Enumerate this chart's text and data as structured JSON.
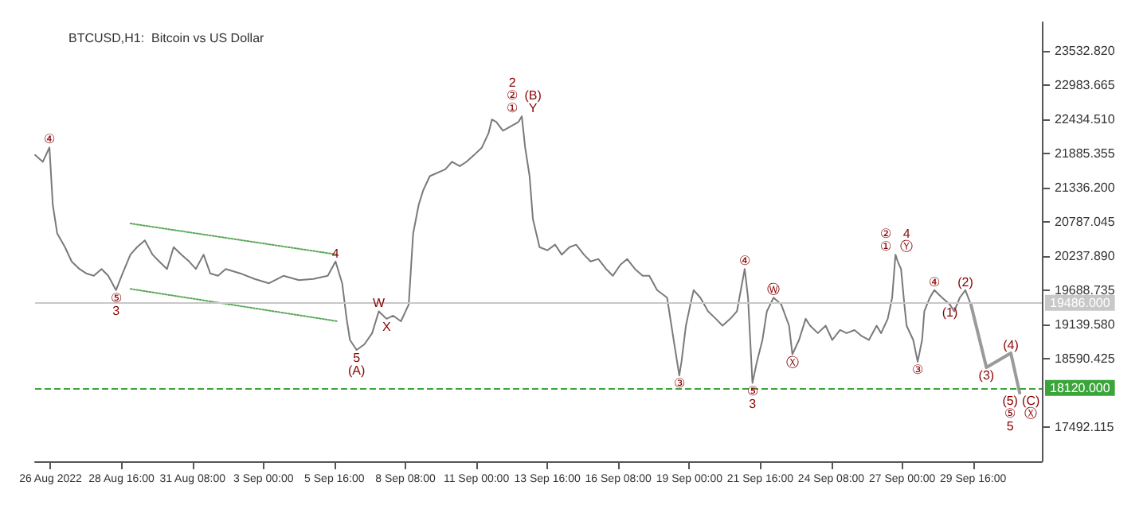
{
  "chart_data": {
    "type": "line",
    "title": "BTCUSD,H1:  Bitcoin vs US Dollar",
    "marker": "none",
    "grid": false,
    "xlim": [
      "2022-08-25T10:00",
      "2022-10-02T06:00"
    ],
    "xticks": [
      {
        "value": "2022-08-26T00:00",
        "label": "26 Aug 2022"
      },
      {
        "value": "2022-08-28T16:00",
        "label": "28 Aug 16:00"
      },
      {
        "value": "2022-08-31T08:00",
        "label": "31 Aug 08:00"
      },
      {
        "value": "2022-09-03T00:00",
        "label": "3 Sep 00:00"
      },
      {
        "value": "2022-09-05T16:00",
        "label": "5 Sep 16:00"
      },
      {
        "value": "2022-09-08T08:00",
        "label": "8 Sep 08:00"
      },
      {
        "value": "2022-09-11T00:00",
        "label": "11 Sep 00:00"
      },
      {
        "value": "2022-09-13T16:00",
        "label": "13 Sep 16:00"
      },
      {
        "value": "2022-09-16T08:00",
        "label": "16 Sep 08:00"
      },
      {
        "value": "2022-09-19T00:00",
        "label": "19 Sep 00:00"
      },
      {
        "value": "2022-09-21T16:00",
        "label": "21 Sep 16:00"
      },
      {
        "value": "2022-09-24T08:00",
        "label": "24 Sep 08:00"
      },
      {
        "value": "2022-09-27T00:00",
        "label": "27 Sep 00:00"
      },
      {
        "value": "2022-09-29T16:00",
        "label": "29 Sep 16:00"
      }
    ],
    "ylim": [
      16943,
      23990
    ],
    "yticks": [
      {
        "value": 17492.115,
        "label": "17492.115"
      },
      {
        "value": 18590.425,
        "label": "18590.425"
      },
      {
        "value": 19139.58,
        "label": "19139.580"
      },
      {
        "value": 19688.735,
        "label": "19688.735"
      },
      {
        "value": 20237.89,
        "label": "20237.890"
      },
      {
        "value": 20787.045,
        "label": "20787.045"
      },
      {
        "value": 21336.2,
        "label": "21336.200"
      },
      {
        "value": 21885.355,
        "label": "21885.355"
      },
      {
        "value": 22434.51,
        "label": "22434.510"
      },
      {
        "value": 22983.665,
        "label": "22983.665"
      },
      {
        "value": 23532.82,
        "label": "23532.820"
      }
    ],
    "ref_lines": [
      {
        "axis": "y",
        "value": 19486,
        "label": "19486.000",
        "color": "#c8c8c8",
        "line_style": "solid"
      },
      {
        "axis": "y",
        "value": 18120,
        "label": "18120.000",
        "color": "#3aa63a",
        "line_style": "dashed"
      }
    ],
    "series": [
      {
        "color": "#7a7a7a",
        "line_style": "solid",
        "x": [
          "2022-08-25T10:00",
          "2022-08-25T17:00",
          "2022-08-25T23:00",
          "2022-08-26T02:00",
          "2022-08-26T06:00",
          "2022-08-26T13:00",
          "2022-08-26T19:00",
          "2022-08-27T02:00",
          "2022-08-27T08:00",
          "2022-08-27T15:00",
          "2022-08-27T22:00",
          "2022-08-28T04:00",
          "2022-08-28T11:00",
          "2022-08-28T17:00",
          "2022-08-29T00:00",
          "2022-08-29T06:00",
          "2022-08-29T13:00",
          "2022-08-29T20:00",
          "2022-08-30T02:00",
          "2022-08-30T09:00",
          "2022-08-30T15:00",
          "2022-08-30T22:00",
          "2022-08-31T05:00",
          "2022-08-31T11:00",
          "2022-08-31T18:00",
          "2022-09-01T00:00",
          "2022-09-01T07:00",
          "2022-09-01T14:00",
          "2022-09-02T03:00",
          "2022-09-02T16:00",
          "2022-09-03T05:00",
          "2022-09-03T18:00",
          "2022-09-04T08:00",
          "2022-09-04T21:00",
          "2022-09-05T10:00",
          "2022-09-05T17:00",
          "2022-09-05T23:00",
          "2022-09-06T03:00",
          "2022-09-06T06:00",
          "2022-09-06T12:00",
          "2022-09-06T19:00",
          "2022-09-07T02:00",
          "2022-09-07T08:00",
          "2022-09-07T15:00",
          "2022-09-07T21:00",
          "2022-09-08T04:00",
          "2022-09-08T11:00",
          "2022-09-08T15:00",
          "2022-09-08T20:00",
          "2022-09-09T00:00",
          "2022-09-09T06:00",
          "2022-09-09T20:00",
          "2022-09-10T02:00",
          "2022-09-10T09:00",
          "2022-09-10T15:00",
          "2022-09-10T22:00",
          "2022-09-11T05:00",
          "2022-09-11T11:00",
          "2022-09-11T14:00",
          "2022-09-11T18:00",
          "2022-09-12T00:00",
          "2022-09-12T07:00",
          "2022-09-12T14:00",
          "2022-09-12T17:00",
          "2022-09-12T20:00",
          "2022-09-13T00:00",
          "2022-09-13T03:00",
          "2022-09-13T09:00",
          "2022-09-13T16:00",
          "2022-09-13T23:00",
          "2022-09-14T05:00",
          "2022-09-14T12:00",
          "2022-09-14T18:00",
          "2022-09-15T01:00",
          "2022-09-15T07:00",
          "2022-09-15T14:00",
          "2022-09-15T21:00",
          "2022-09-16T03:00",
          "2022-09-16T10:00",
          "2022-09-16T16:00",
          "2022-09-16T23:00",
          "2022-09-17T06:00",
          "2022-09-17T12:00",
          "2022-09-17T19:00",
          "2022-09-18T04:00",
          "2022-09-18T11:00",
          "2022-09-18T15:00",
          "2022-09-18T17:00",
          "2022-09-18T21:00",
          "2022-09-19T01:00",
          "2022-09-19T04:00",
          "2022-09-19T10:00",
          "2022-09-19T17:00",
          "2022-09-20T00:00",
          "2022-09-20T06:00",
          "2022-09-20T13:00",
          "2022-09-20T19:00",
          "2022-09-21T02:00",
          "2022-09-21T05:00",
          "2022-09-21T09:00",
          "2022-09-21T13:00",
          "2022-09-21T18:00",
          "2022-09-21T22:00",
          "2022-09-22T04:00",
          "2022-09-22T11:00",
          "2022-09-22T18:00",
          "2022-09-22T21:00",
          "2022-09-23T03:00",
          "2022-09-23T09:00",
          "2022-09-23T13:00",
          "2022-09-23T20:00",
          "2022-09-24T03:00",
          "2022-09-24T09:00",
          "2022-09-24T16:00",
          "2022-09-24T22:00",
          "2022-09-25T05:00",
          "2022-09-25T11:00",
          "2022-09-25T18:00",
          "2022-09-26T01:00",
          "2022-09-26T05:00",
          "2022-09-26T11:00",
          "2022-09-26T15:00",
          "2022-09-26T18:00",
          "2022-09-26T20:00",
          "2022-09-26T23:00",
          "2022-09-27T02:00",
          "2022-09-27T04:00",
          "2022-09-27T10:00",
          "2022-09-27T14:00",
          "2022-09-27T18:00",
          "2022-09-27T20:00",
          "2022-09-28T01:00",
          "2022-09-28T05:00",
          "2022-09-28T12:00",
          "2022-09-28T19:00",
          "2022-09-28T23:00",
          "2022-09-29T04:00",
          "2022-09-29T09:00",
          "2022-09-29T14:00"
        ],
        "values": [
          21860,
          21750,
          21980,
          21060,
          20600,
          20380,
          20150,
          20030,
          19960,
          19920,
          20030,
          19920,
          19690,
          19960,
          20260,
          20380,
          20490,
          20260,
          20150,
          20030,
          20380,
          20260,
          20150,
          20030,
          20260,
          19960,
          19920,
          20030,
          19960,
          19870,
          19800,
          19920,
          19850,
          19870,
          19920,
          20150,
          19800,
          19230,
          18890,
          18730,
          18820,
          19000,
          19350,
          19230,
          19280,
          19190,
          19460,
          20600,
          21060,
          21290,
          21520,
          21630,
          21750,
          21680,
          21750,
          21860,
          21980,
          22210,
          22430,
          22390,
          22250,
          22320,
          22390,
          22480,
          21980,
          21520,
          20830,
          20380,
          20330,
          20420,
          20260,
          20380,
          20420,
          20260,
          20150,
          20190,
          20030,
          19920,
          20100,
          20190,
          20030,
          19920,
          19920,
          19690,
          19570,
          18770,
          18320,
          18540,
          19120,
          19460,
          19690,
          19570,
          19350,
          19230,
          19120,
          19230,
          19350,
          20030,
          19570,
          18200,
          18540,
          18890,
          19350,
          19570,
          19460,
          19120,
          18660,
          18890,
          19230,
          19120,
          19000,
          19120,
          18890,
          19050,
          19000,
          19050,
          18960,
          18890,
          19120,
          19000,
          19230,
          19570,
          20260,
          20150,
          20030,
          19460,
          19120,
          18890,
          18540,
          18890,
          19350,
          19570,
          19690,
          19570,
          19460,
          19350,
          19570,
          19690,
          19460
        ]
      },
      {
        "color": "#9a9a9a",
        "line_style": "solid",
        "x": [
          "2022-09-29T14:00",
          "2022-09-30T04:00",
          "2022-10-01T02:00",
          "2022-10-01T10:00"
        ],
        "values": [
          19460,
          18450,
          18680,
          18040
        ]
      },
      {
        "color": "#5aa85a",
        "line_style": "dotted",
        "x": [
          "2022-08-29T00:00",
          "2022-09-05T19:00"
        ],
        "values": [
          20760,
          20260
        ]
      },
      {
        "color": "#5aa85a",
        "line_style": "dotted",
        "x": [
          "2022-08-29T00:00",
          "2022-09-05T19:00"
        ],
        "values": [
          19710,
          19190
        ]
      }
    ],
    "annotations": [
      {
        "text": "④",
        "x": "2022-08-25T23:00",
        "y": 21980
      },
      {
        "text": "⑤",
        "x": "2022-08-28T11:00",
        "y": 19690
      },
      {
        "text": "3",
        "x": "2022-08-28T11:00",
        "y": 19690
      },
      {
        "text": "4",
        "x": "2022-09-05T17:00",
        "y": 20150
      },
      {
        "text": "5",
        "x": "2022-09-06T12:00",
        "y": 18730
      },
      {
        "text": "(A)",
        "x": "2022-09-06T12:00",
        "y": 18730
      },
      {
        "text": "W",
        "x": "2022-09-07T08:00",
        "y": 19350
      },
      {
        "text": "X",
        "x": "2022-09-07T15:00",
        "y": 19230
      },
      {
        "text": "①",
        "x": "2022-09-12T17:00",
        "y": 22480
      },
      {
        "text": "②",
        "x": "2022-09-12T17:00",
        "y": 22480
      },
      {
        "text": "2",
        "x": "2022-09-12T17:00",
        "y": 22480
      },
      {
        "text": "Y",
        "x": "2022-09-12T17:00",
        "y": 22480
      },
      {
        "text": "(B)",
        "x": "2022-09-12T17:00",
        "y": 22480
      },
      {
        "text": "③",
        "x": "2022-09-18T15:00",
        "y": 18320
      },
      {
        "text": "④",
        "x": "2022-09-21T02:00",
        "y": 20030
      },
      {
        "text": "⑤",
        "x": "2022-09-21T09:00",
        "y": 18200
      },
      {
        "text": "3",
        "x": "2022-09-21T09:00",
        "y": 18200
      },
      {
        "text": "Ⓦ",
        "x": "2022-09-22T04:00",
        "y": 19570
      },
      {
        "text": "Ⓧ",
        "x": "2022-09-22T21:00",
        "y": 18660
      },
      {
        "text": "①",
        "x": "2022-09-26T18:00",
        "y": 20260
      },
      {
        "text": "②",
        "x": "2022-09-26T18:00",
        "y": 20260
      },
      {
        "text": "Ⓨ",
        "x": "2022-09-26T18:00",
        "y": 20260
      },
      {
        "text": "4",
        "x": "2022-09-26T18:00",
        "y": 20260
      },
      {
        "text": "③",
        "x": "2022-09-27T14:00",
        "y": 18540
      },
      {
        "text": "④",
        "x": "2022-09-28T05:00",
        "y": 19690
      },
      {
        "text": "(1)",
        "x": "2022-09-28T19:00",
        "y": 19460
      },
      {
        "text": "(2)",
        "x": "2022-09-29T09:00",
        "y": 19690
      },
      {
        "text": "(3)",
        "x": "2022-09-30T04:00",
        "y": 18450
      },
      {
        "text": "(4)",
        "x": "2022-10-01T02:00",
        "y": 18680
      },
      {
        "text": "(5)",
        "x": "2022-10-01T10:00",
        "y": 18040
      },
      {
        "text": "⑤",
        "x": "2022-10-01T10:00",
        "y": 18040
      },
      {
        "text": "5",
        "x": "2022-10-01T10:00",
        "y": 18040
      },
      {
        "text": "(C)",
        "x": "2022-10-01T10:00",
        "y": 18040
      },
      {
        "text": "Ⓧ",
        "x": "2022-10-01T10:00",
        "y": 18040
      }
    ]
  }
}
